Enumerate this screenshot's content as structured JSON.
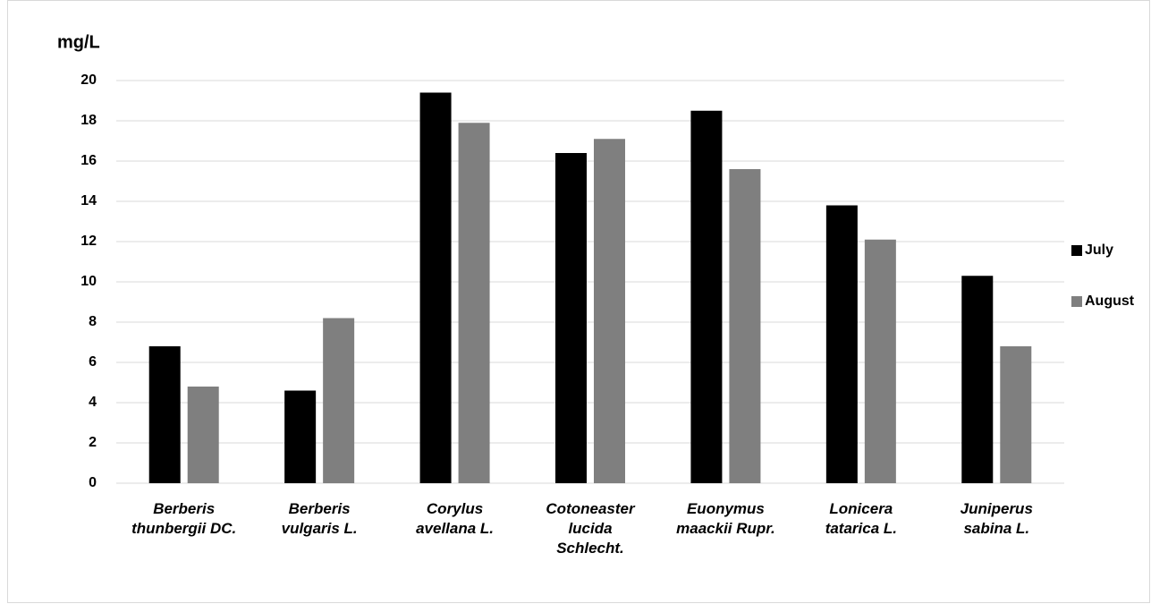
{
  "chart_data": {
    "type": "bar",
    "y_label": "mg/L",
    "categories": [
      "Berberis\nthunbergii DC.",
      "Berberis\nvulgaris L.",
      "Corylus\navellana L.",
      "Cotoneaster\nlucida\nSchlecht.",
      "Euonymus\nmaackii Rupr.",
      "Lonicera\ntatarica L.",
      "Juniperus\nsabina L."
    ],
    "series": [
      {
        "name": "July",
        "color": "#000000",
        "values": [
          6.8,
          4.6,
          19.4,
          16.4,
          18.5,
          13.8,
          10.3
        ]
      },
      {
        "name": "August",
        "color": "#7f7f7f",
        "values": [
          4.8,
          8.2,
          17.9,
          17.1,
          15.6,
          12.1,
          6.8
        ]
      }
    ],
    "ylim": [
      0,
      20
    ],
    "yticks": [
      0,
      2,
      4,
      6,
      8,
      10,
      12,
      14,
      16,
      18,
      20
    ],
    "grid": true,
    "legend": "right"
  }
}
